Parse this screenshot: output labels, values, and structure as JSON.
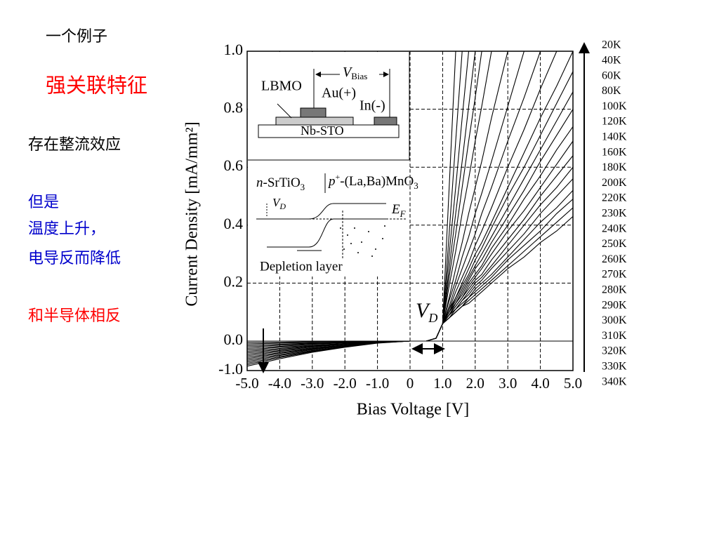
{
  "slide": {
    "heading": "一个例子",
    "subtitle": "强关联特征",
    "point1": "存在整流效应",
    "point2": [
      "但是",
      "温度上升，",
      "电导反而降低"
    ],
    "point3": "和半导体相反"
  },
  "inset": {
    "lbmo": "LBMO",
    "au": "Au(+)",
    "in": "In(-)",
    "nbsto": "Nb-STO",
    "vbias": [
      "V",
      "Bias"
    ],
    "ntype": [
      "n",
      "-SrTiO",
      "3"
    ],
    "ptype": [
      "p",
      "+",
      "-(La,Ba)MnO",
      "3"
    ],
    "vd": [
      "V",
      "D"
    ],
    "ef": [
      "E",
      "F"
    ],
    "depletion": "Depletion layer",
    "vd_curve": [
      "V",
      "D"
    ]
  },
  "chart_data": {
    "type": "line",
    "x_label": "Bias Voltage [V]",
    "y_label": "Current Density [mA/mm²]",
    "color": "#000000",
    "grid": true,
    "x": [
      -5,
      -4,
      -3,
      -2,
      -1,
      0,
      0.5,
      0.8,
      1,
      1.2,
      1.4,
      1.6,
      1.8,
      2,
      2.2,
      2.5,
      3,
      3.5,
      4,
      4.5,
      5
    ],
    "xlim": [
      -5,
      5
    ],
    "ylim": [
      -1,
      1
    ],
    "xticks": [
      {
        "value": -5,
        "label": "-5.0"
      },
      {
        "value": -4,
        "label": "-4.0"
      },
      {
        "value": -3,
        "label": "-3.0"
      },
      {
        "value": -2,
        "label": "-2.0"
      },
      {
        "value": -1,
        "label": "-1.0"
      },
      0,
      {
        "value": 1,
        "label": "1.0"
      },
      {
        "value": 2,
        "label": "2.0"
      },
      {
        "value": 3,
        "label": "3.0"
      },
      {
        "value": 4,
        "label": "4.0"
      },
      {
        "value": 5,
        "label": "5.0"
      }
    ],
    "yticks": [
      {
        "value": 1,
        "label": "1.0"
      },
      0.8,
      0.6,
      0.4,
      0.2,
      {
        "value": 0,
        "label": "0.0"
      },
      {
        "value": -1,
        "label": "-1.0"
      }
    ],
    "series": [
      {
        "name": "20K",
        "values": [
          0,
          0,
          0,
          0,
          0,
          0,
          0,
          0.01,
          0.06,
          0.53,
          1.0,
          null,
          null,
          null,
          null,
          null,
          null,
          null,
          null,
          null,
          null
        ]
      },
      {
        "name": "40K",
        "values": [
          0,
          0,
          0,
          0,
          0,
          0,
          0,
          0.01,
          0.06,
          0.37,
          0.69,
          1.0,
          null,
          null,
          null,
          null,
          null,
          null,
          null,
          null,
          null
        ]
      },
      {
        "name": "60K",
        "values": [
          0,
          0,
          0,
          0,
          0,
          0,
          0,
          0.01,
          0.06,
          0.3,
          0.53,
          0.77,
          1.0,
          null,
          null,
          null,
          null,
          null,
          null,
          null,
          null
        ]
      },
      {
        "name": "80K",
        "values": [
          0,
          0,
          0,
          0,
          0,
          0,
          0,
          0.01,
          0.06,
          0.25,
          0.44,
          0.62,
          0.81,
          1.0,
          null,
          null,
          null,
          null,
          null,
          null,
          null
        ]
      },
      {
        "name": "100K",
        "values": [
          0,
          0,
          0,
          0,
          0,
          0,
          0,
          0.01,
          0.06,
          0.22,
          0.37,
          0.53,
          0.69,
          0.84,
          1.0,
          null,
          null,
          null,
          null,
          null,
          null
        ]
      },
      {
        "name": "120K",
        "values": [
          0,
          0,
          0,
          0,
          0,
          0,
          0,
          0.01,
          0.06,
          0.19,
          0.31,
          0.44,
          0.56,
          0.69,
          0.81,
          1.0,
          null,
          null,
          null,
          null,
          null
        ]
      },
      {
        "name": "140K",
        "values": [
          -0.05,
          -0.04,
          -0.02,
          -0.01,
          0,
          0,
          0,
          0.01,
          0.06,
          0.15,
          0.25,
          0.34,
          0.44,
          0.53,
          0.62,
          0.77,
          1.0,
          null,
          null,
          null,
          null
        ]
      },
      {
        "name": "160K",
        "values": [
          -0.1,
          -0.07,
          -0.05,
          -0.03,
          -0.01,
          0,
          0,
          0.01,
          0.06,
          0.14,
          0.21,
          0.29,
          0.36,
          0.44,
          0.51,
          0.62,
          0.81,
          1.0,
          null,
          null,
          null
        ]
      },
      {
        "name": "180K",
        "values": [
          -0.15,
          -0.11,
          -0.07,
          -0.04,
          -0.01,
          0,
          0,
          0.01,
          0.06,
          0.12,
          0.19,
          0.25,
          0.31,
          0.37,
          0.44,
          0.53,
          0.69,
          0.84,
          1.0,
          null,
          null
        ]
      },
      {
        "name": "200K",
        "values": [
          -0.2,
          -0.14,
          -0.09,
          -0.05,
          -0.02,
          0,
          0,
          0.01,
          0.06,
          0.11,
          0.17,
          0.22,
          0.27,
          0.33,
          0.38,
          0.46,
          0.6,
          0.73,
          0.87,
          1.0,
          null
        ]
      },
      {
        "name": "220K",
        "values": [
          -0.25,
          -0.18,
          -0.11,
          -0.06,
          -0.02,
          0,
          0,
          0.01,
          0.06,
          0.11,
          0.15,
          0.2,
          0.25,
          0.3,
          0.34,
          0.41,
          0.53,
          0.65,
          0.77,
          0.88,
          1.0
        ]
      },
      {
        "name": "230K",
        "values": [
          -0.3,
          -0.21,
          -0.14,
          -0.08,
          -0.02,
          0,
          0,
          0.01,
          0.06,
          0.1,
          0.15,
          0.19,
          0.23,
          0.28,
          0.32,
          0.39,
          0.5,
          0.6,
          0.71,
          0.82,
          0.93
        ]
      },
      {
        "name": "240K",
        "values": [
          -0.35,
          -0.25,
          -0.16,
          -0.09,
          -0.03,
          0,
          0,
          0.01,
          0.06,
          0.1,
          0.14,
          0.18,
          0.22,
          0.26,
          0.3,
          0.36,
          0.46,
          0.56,
          0.66,
          0.76,
          0.86
        ]
      },
      {
        "name": "250K",
        "values": [
          -0.4,
          -0.28,
          -0.18,
          -0.1,
          -0.03,
          0,
          0,
          0.01,
          0.06,
          0.1,
          0.13,
          0.17,
          0.21,
          0.25,
          0.28,
          0.34,
          0.43,
          0.52,
          0.62,
          0.71,
          0.8
        ]
      },
      {
        "name": "260K",
        "values": [
          -0.45,
          -0.32,
          -0.2,
          -0.11,
          -0.04,
          0,
          0,
          0.01,
          0.06,
          0.09,
          0.13,
          0.16,
          0.2,
          0.23,
          0.26,
          0.32,
          0.4,
          0.49,
          0.57,
          0.66,
          0.74
        ]
      },
      {
        "name": "270K",
        "values": [
          -0.5,
          -0.35,
          -0.23,
          -0.13,
          -0.04,
          0,
          0,
          0.01,
          0.06,
          0.09,
          0.12,
          0.15,
          0.19,
          0.22,
          0.25,
          0.3,
          0.38,
          0.45,
          0.53,
          0.61,
          0.69
        ]
      },
      {
        "name": "280K",
        "values": [
          -0.55,
          -0.39,
          -0.25,
          -0.14,
          -0.04,
          0,
          0,
          0.01,
          0.06,
          0.09,
          0.12,
          0.15,
          0.18,
          0.21,
          0.23,
          0.28,
          0.35,
          0.42,
          0.5,
          0.57,
          0.64
        ]
      },
      {
        "name": "290K",
        "values": [
          -0.6,
          -0.42,
          -0.27,
          -0.15,
          -0.05,
          0,
          0,
          0.01,
          0.06,
          0.09,
          0.11,
          0.14,
          0.17,
          0.2,
          0.22,
          0.26,
          0.33,
          0.4,
          0.47,
          0.53,
          0.6
        ]
      },
      {
        "name": "300K",
        "values": [
          -0.65,
          -0.46,
          -0.29,
          -0.16,
          -0.05,
          0,
          0,
          0.01,
          0.06,
          0.09,
          0.11,
          0.14,
          0.16,
          0.19,
          0.21,
          0.25,
          0.31,
          0.37,
          0.44,
          0.5,
          0.56
        ]
      },
      {
        "name": "310K",
        "values": [
          -0.7,
          -0.49,
          -0.32,
          -0.18,
          -0.06,
          0,
          0,
          0.01,
          0.06,
          0.08,
          0.11,
          0.13,
          0.15,
          0.18,
          0.2,
          0.23,
          0.29,
          0.35,
          0.41,
          0.46,
          0.52
        ]
      },
      {
        "name": "320K",
        "values": [
          -0.75,
          -0.53,
          -0.34,
          -0.19,
          -0.06,
          0,
          0,
          0.01,
          0.06,
          0.08,
          0.1,
          0.12,
          0.15,
          0.17,
          0.19,
          0.22,
          0.28,
          0.33,
          0.38,
          0.44,
          0.49
        ]
      },
      {
        "name": "330K",
        "values": [
          -0.8,
          -0.56,
          -0.36,
          -0.2,
          -0.06,
          0,
          0,
          0.01,
          0.06,
          0.08,
          0.1,
          0.12,
          0.14,
          0.16,
          0.18,
          0.21,
          0.26,
          0.31,
          0.36,
          0.41,
          0.46
        ]
      },
      {
        "name": "340K",
        "values": [
          -0.85,
          -0.6,
          -0.38,
          -0.21,
          -0.07,
          0,
          0,
          0.01,
          0.06,
          0.08,
          0.1,
          0.12,
          0.13,
          0.15,
          0.17,
          0.2,
          0.25,
          0.29,
          0.34,
          0.38,
          0.43
        ]
      }
    ]
  }
}
